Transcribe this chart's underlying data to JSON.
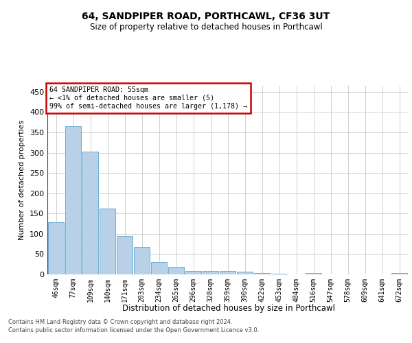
{
  "title": "64, SANDPIPER ROAD, PORTHCAWL, CF36 3UT",
  "subtitle": "Size of property relative to detached houses in Porthcawl",
  "xlabel": "Distribution of detached houses by size in Porthcawl",
  "ylabel": "Number of detached properties",
  "categories": [
    "46sqm",
    "77sqm",
    "109sqm",
    "140sqm",
    "171sqm",
    "203sqm",
    "234sqm",
    "265sqm",
    "296sqm",
    "328sqm",
    "359sqm",
    "390sqm",
    "422sqm",
    "453sqm",
    "484sqm",
    "516sqm",
    "547sqm",
    "578sqm",
    "609sqm",
    "641sqm",
    "672sqm"
  ],
  "values": [
    128,
    365,
    303,
    163,
    94,
    67,
    30,
    18,
    9,
    8,
    8,
    6,
    4,
    2,
    0,
    3,
    0,
    0,
    0,
    0,
    3
  ],
  "bar_color": "#b8d0e8",
  "bar_edge_color": "#6aaed6",
  "annotation_box_text": "64 SANDPIPER ROAD: 55sqm\n← <1% of detached houses are smaller (5)\n99% of semi-detached houses are larger (1,178) →",
  "annotation_box_color": "#ffffff",
  "annotation_box_edge_color": "#cc0000",
  "vline_color": "#cc0000",
  "grid_color": "#d0d0d0",
  "background_color": "#ffffff",
  "ylim": [
    0,
    465
  ],
  "yticks": [
    0,
    50,
    100,
    150,
    200,
    250,
    300,
    350,
    400,
    450
  ],
  "footer_line1": "Contains HM Land Registry data © Crown copyright and database right 2024.",
  "footer_line2": "Contains public sector information licensed under the Open Government Licence v3.0."
}
